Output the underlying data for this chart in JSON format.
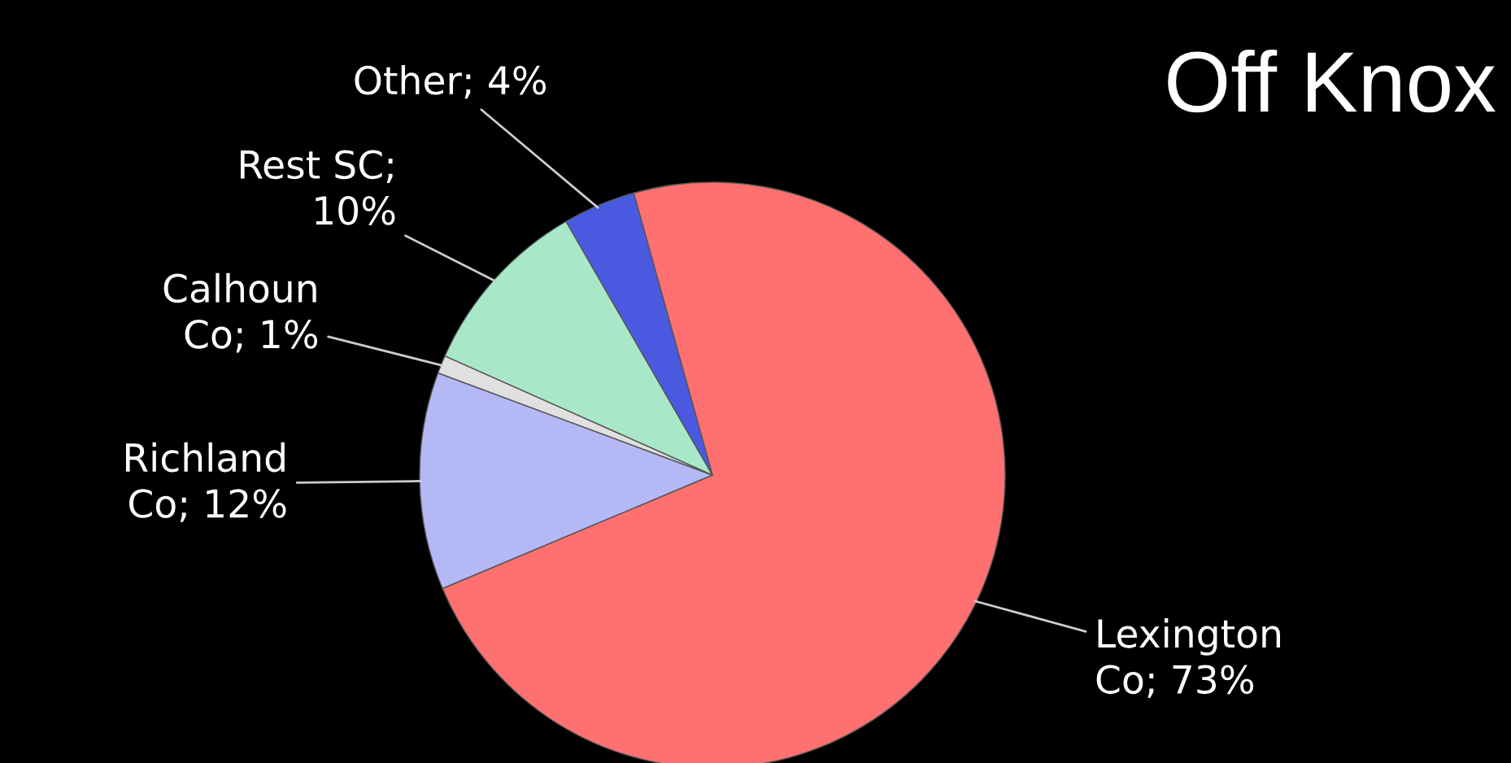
{
  "chart_data": {
    "type": "pie",
    "title": "Off Knox",
    "categories": [
      "Lexington\nCo; 73%",
      "Richland\nCo; 12%",
      "Calhoun\nCo; 1%",
      "Rest SC;\n10%",
      "Other; 4%"
    ],
    "values": [
      73,
      12,
      1,
      10,
      4
    ],
    "colors": [
      "#ff7070",
      "#b4b8f5",
      "#e0e0e0",
      "#a8e8c8",
      "#4a5ae0"
    ]
  }
}
